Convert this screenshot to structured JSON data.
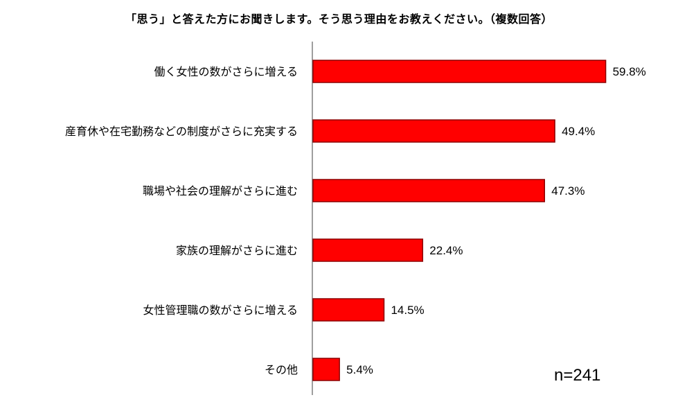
{
  "chart_data": {
    "type": "bar",
    "orientation": "horizontal",
    "title": "「思う」と答えた方にお聞きします。そう思う理由をお教えください。（複数回答）",
    "categories": [
      "働く女性の数がさらに増える",
      "産育休や在宅勤務などの制度がさらに充実する",
      "職場や社会の理解がさらに進む",
      "家族の理解がさらに進む",
      "女性管理職の数がさらに増える",
      "その他"
    ],
    "values": [
      59.8,
      49.4,
      47.3,
      22.4,
      14.5,
      5.4
    ],
    "data_labels": [
      "59.8%",
      "49.4%",
      "47.3%",
      "22.4%",
      "14.5%",
      "5.4%"
    ],
    "xlim": [
      0,
      60
    ],
    "grid": false,
    "bar_color": "#ff0000",
    "bar_edge_color": "#8b0000"
  },
  "annotation": {
    "n_label": "n=241"
  }
}
